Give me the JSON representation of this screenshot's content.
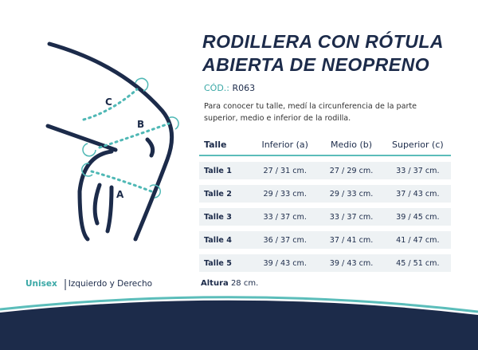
{
  "diagram": {
    "labels": [
      "C",
      "B",
      "A"
    ]
  },
  "header": {
    "title_lines": [
      "RODILLERA CON RÓTULA",
      "ABIERTA DE NEOPRENO"
    ],
    "code_label": "CÓD.:",
    "code": "R063",
    "description": "Para conocer tu talle, medí la circunferencia de la parte superior, medio e inferior de la rodilla."
  },
  "table": {
    "columns": [
      "Talle",
      "Inferior (a)",
      "Medio (b)",
      "Superior (c)"
    ],
    "rows": [
      [
        "Talle 1",
        "27 / 31 cm.",
        "27 / 29 cm.",
        "33 / 37 cm."
      ],
      [
        "Talle 2",
        "29 / 33 cm.",
        "29 / 33 cm.",
        "37 / 43 cm."
      ],
      [
        "Talle 3",
        "33 / 37 cm.",
        "33 / 37 cm.",
        "39 / 45 cm."
      ],
      [
        "Talle 4",
        "36 / 37 cm.",
        "37 / 41 cm.",
        "41 / 47 cm."
      ],
      [
        "Talle 5",
        "39 / 43 cm.",
        "39 / 43 cm.",
        "45 / 51 cm."
      ]
    ]
  },
  "footer": {
    "gender": "Unisex",
    "side": "Izquierdo y Derecho",
    "height_label": "Altura",
    "height": "28 cm."
  }
}
